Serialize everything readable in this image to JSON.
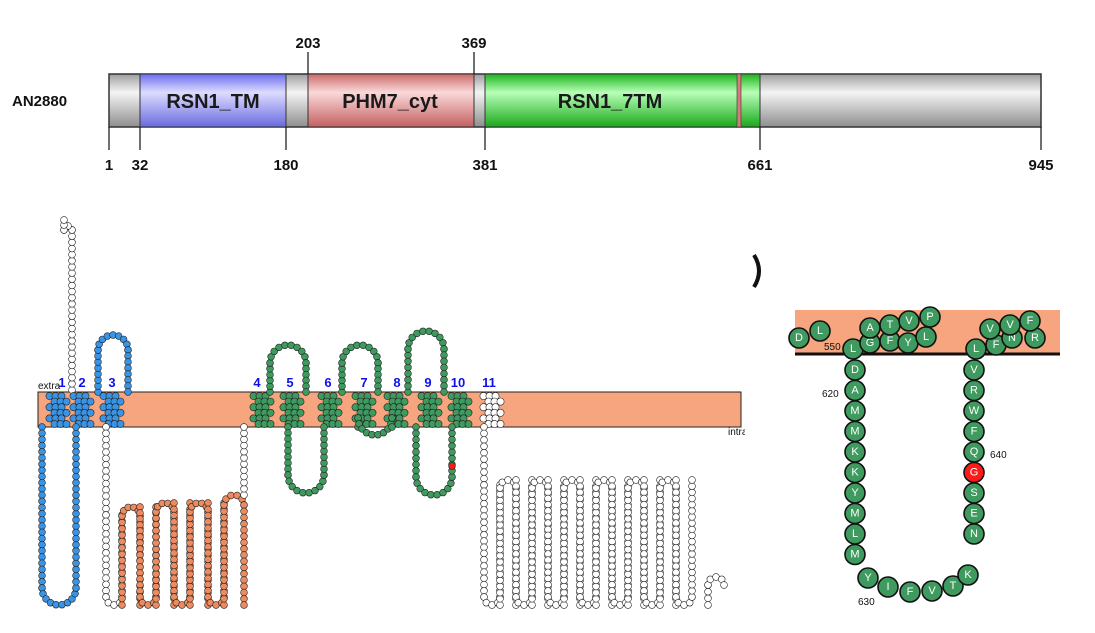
{
  "protein": {
    "name": "AN2880",
    "length_label": "945",
    "start_label": "1"
  },
  "domains": [
    {
      "name": "RSN1_TM",
      "start": 32,
      "end": 180,
      "color": "#9a9af5",
      "start_label": "32",
      "end_label": "180"
    },
    {
      "name": "PHM7_cyt",
      "start": 203,
      "end": 369,
      "color": "#e69a9a",
      "start_label": "203",
      "end_label": "369"
    },
    {
      "name": "RSN1_7TM",
      "start": 381,
      "end": 661,
      "color": "#3ad83a",
      "start_label": "381",
      "end_label": "661"
    }
  ],
  "colors": {
    "backbone": "#c8c8c8",
    "membrane": "#f7a57f",
    "tm_blue": "#3a94e6",
    "tm_green": "#3e9a5e",
    "loop_orange": "#ec8a60",
    "highlight": "#ff1a1a"
  },
  "topology": {
    "tm_labels": [
      "1",
      "2",
      "3",
      "4",
      "5",
      "6",
      "7",
      "8",
      "9",
      "10",
      "11"
    ],
    "extra_label": "extra",
    "intra_label": "intra"
  },
  "zoom": {
    "left_strand": [
      "D",
      "A",
      "M",
      "M",
      "K",
      "K",
      "Y",
      "M",
      "L",
      "M"
    ],
    "bottom": [
      "Y",
      "I",
      "F",
      "V",
      "T",
      "K"
    ],
    "right_strand": [
      "V",
      "R",
      "W",
      "F",
      "Q",
      "G",
      "S",
      "E",
      "N"
    ],
    "top_left": [
      "D",
      "L",
      "L",
      "G",
      "F",
      "Y",
      "L",
      "A",
      "T",
      "V",
      "P"
    ],
    "top_right": [
      "L",
      "F",
      "N",
      "R",
      "V",
      "V",
      "F"
    ],
    "highlight_residue": "G",
    "pos_labels": [
      "550",
      "620",
      "630",
      "640"
    ]
  }
}
